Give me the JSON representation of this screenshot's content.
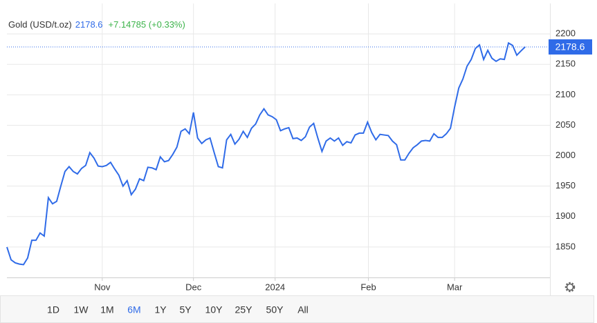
{
  "chart_data": {
    "type": "line",
    "title": "Gold (USD/t.oz)",
    "change": "+7.14785 (+0.33%)",
    "color": "#2f6be8",
    "change_color": "#3cb34a",
    "values": [
      1850,
      1829,
      1824,
      1822,
      1821,
      1832,
      1861,
      1861,
      1873,
      1868,
      1931,
      1921,
      1925,
      1950,
      1974,
      1982,
      1974,
      1970,
      1979,
      1984,
      2005,
      1996,
      1983,
      1982,
      1984,
      1989,
      1978,
      1968,
      1950,
      1959,
      1936,
      1945,
      1962,
      1959,
      1981,
      1980,
      1977,
      1998,
      1990,
      1992,
      2002,
      2014,
      2040,
      2044,
      2036,
      2071,
      2029,
      2020,
      2026,
      2029,
      2005,
      1982,
      1980,
      2026,
      2035,
      2019,
      2027,
      2040,
      2030,
      2045,
      2052,
      2067,
      2077,
      2067,
      2064,
      2059,
      2041,
      2044,
      2046,
      2028,
      2029,
      2025,
      2031,
      2047,
      2053,
      2029,
      2007,
      2024,
      2029,
      2024,
      2029,
      2017,
      2023,
      2021,
      2034,
      2037,
      2037,
      2055,
      2038,
      2026,
      2035,
      2034,
      2033,
      2024,
      2018,
      1993,
      1993,
      2004,
      2013,
      2018,
      2024,
      2025,
      2024,
      2036,
      2030,
      2030,
      2036,
      2045,
      2080,
      2111,
      2126,
      2147,
      2158,
      2176,
      2182,
      2158,
      2173,
      2160,
      2155,
      2159,
      2158,
      2185,
      2181,
      2165,
      2172,
      2178.6
    ],
    "xlim": [
      0,
      131
    ],
    "xticks": [
      {
        "value": 23,
        "label": "Nov"
      },
      {
        "value": 45,
        "label": "Dec"
      },
      {
        "value": 64.7,
        "label": "2024"
      },
      {
        "value": 87.2,
        "label": "Feb"
      },
      {
        "value": 108,
        "label": "Mar"
      }
    ],
    "ylim": [
      1800,
      2250
    ],
    "yticks": [
      1850,
      1900,
      1950,
      2000,
      2050,
      2100,
      2150,
      2200
    ],
    "grid": true,
    "ranges": [
      "1D",
      "1W",
      "1M",
      "6M",
      "1Y",
      "5Y",
      "10Y",
      "25Y",
      "50Y",
      "All"
    ],
    "active_range": "6M"
  }
}
